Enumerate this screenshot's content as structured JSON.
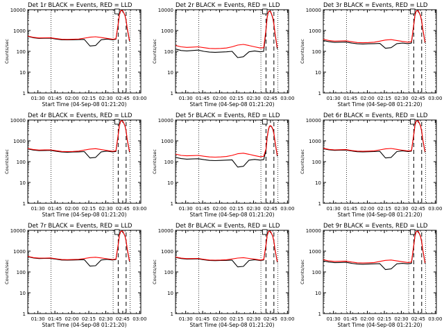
{
  "figure": {
    "xlabel": "Start Time (04-Sep-08 01:21:20)",
    "ylabel": "Counts/sec"
  },
  "axes_common": {
    "x_ticks": [
      "01:30",
      "01:45",
      "02:00",
      "02:15",
      "02:30",
      "02:45",
      "03:00"
    ],
    "x_tick_minutes": [
      90,
      105,
      120,
      135,
      150,
      165,
      180
    ],
    "xlim_minutes": [
      81,
      181
    ],
    "y_scale": "log",
    "ylim": [
      1,
      10000
    ],
    "y_ticks": [
      "1",
      "10",
      "100",
      "1000",
      "10000"
    ],
    "y_tick_values": [
      1,
      10,
      100,
      1000,
      10000
    ],
    "dotted_lines_minutes": [
      101.5,
      156.5,
      171.5
    ],
    "dashed_lines_minutes": [
      161,
      168
    ],
    "small_box_minutes": [
      158,
      162
    ],
    "series_colors": {
      "events": "#000000",
      "lld": "#ff0000"
    }
  },
  "chart_data": [
    {
      "type": "line",
      "title": "Det 1r BLACK = Events, RED = LLD",
      "x": [
        81,
        86,
        91,
        96,
        101,
        106,
        111,
        116,
        121,
        126,
        131,
        136,
        141,
        146,
        151,
        156,
        159,
        161,
        162,
        163,
        164,
        165,
        166,
        167,
        168,
        169,
        170,
        171
      ],
      "series": [
        {
          "name": "Events",
          "color": "#000000",
          "values": [
            520,
            450,
            420,
            425,
            430,
            390,
            360,
            355,
            360,
            365,
            375,
            180,
            190,
            360,
            390,
            360,
            380,
            2000,
            5500,
            8500,
            9200,
            8800,
            7000,
            5200,
            3000,
            1200,
            600,
            300
          ]
        },
        {
          "name": "LLD",
          "color": "#ff0000",
          "values": [
            540,
            470,
            440,
            445,
            450,
            410,
            380,
            375,
            380,
            390,
            430,
            480,
            500,
            460,
            420,
            380,
            400,
            2100,
            5600,
            8600,
            9300,
            8900,
            7100,
            5300,
            3100,
            1300,
            650,
            320
          ]
        }
      ]
    },
    {
      "type": "line",
      "title": "Det 2r BLACK = Events, RED = LLD",
      "x": [
        81,
        86,
        91,
        96,
        101,
        106,
        111,
        116,
        121,
        126,
        131,
        136,
        141,
        146,
        151,
        156,
        159,
        161,
        162,
        163,
        164,
        165,
        166,
        167,
        168,
        169,
        170,
        171
      ],
      "series": [
        {
          "name": "Events",
          "color": "#000000",
          "values": [
            130,
            110,
            105,
            110,
            115,
            100,
            92,
            90,
            92,
            95,
            100,
            50,
            55,
            95,
            105,
            95,
            100,
            1000,
            4000,
            7500,
            8500,
            8000,
            6000,
            4000,
            2000,
            700,
            300,
            130
          ]
        },
        {
          "name": "LLD",
          "color": "#ff0000",
          "values": [
            190,
            165,
            155,
            160,
            165,
            150,
            138,
            135,
            138,
            145,
            165,
            200,
            215,
            190,
            165,
            145,
            150,
            1100,
            4200,
            7700,
            8700,
            8200,
            6200,
            4200,
            2100,
            750,
            330,
            150
          ]
        }
      ]
    },
    {
      "type": "line",
      "title": "Det 3r BLACK = Events, RED = LLD",
      "x": [
        81,
        86,
        91,
        96,
        101,
        106,
        111,
        116,
        121,
        126,
        131,
        136,
        141,
        146,
        151,
        156,
        159,
        161,
        162,
        163,
        164,
        165,
        166,
        167,
        168,
        169,
        170,
        171
      ],
      "series": [
        {
          "name": "Events",
          "color": "#000000",
          "values": [
            330,
            290,
            270,
            275,
            280,
            250,
            230,
            225,
            230,
            235,
            240,
            140,
            150,
            235,
            250,
            235,
            250,
            1800,
            5000,
            8300,
            9000,
            8600,
            6800,
            5000,
            2800,
            1100,
            550,
            250
          ]
        },
        {
          "name": "LLD",
          "color": "#ff0000",
          "values": [
            380,
            330,
            310,
            315,
            320,
            290,
            265,
            260,
            265,
            275,
            310,
            350,
            365,
            330,
            300,
            275,
            290,
            1900,
            5100,
            8400,
            9100,
            8700,
            6900,
            5100,
            2900,
            1150,
            580,
            270
          ]
        }
      ]
    },
    {
      "type": "line",
      "title": "Det 4r BLACK = Events, RED = LLD",
      "x": [
        81,
        86,
        91,
        96,
        101,
        106,
        111,
        116,
        121,
        126,
        131,
        136,
        141,
        146,
        151,
        156,
        159,
        161,
        162,
        163,
        164,
        165,
        166,
        167,
        168,
        169,
        170,
        171
      ],
      "series": [
        {
          "name": "Events",
          "color": "#000000",
          "values": [
            410,
            360,
            340,
            345,
            350,
            315,
            290,
            285,
            290,
            295,
            305,
            150,
            160,
            295,
            320,
            295,
            310,
            1900,
            5200,
            8500,
            9200,
            8800,
            7000,
            5100,
            2900,
            1100,
            560,
            280
          ]
        },
        {
          "name": "LLD",
          "color": "#ff0000",
          "values": [
            430,
            380,
            360,
            365,
            370,
            335,
            310,
            305,
            310,
            320,
            360,
            400,
            420,
            380,
            345,
            315,
            330,
            2000,
            5300,
            8600,
            9300,
            8900,
            7100,
            5200,
            3000,
            1150,
            590,
            300
          ]
        }
      ]
    },
    {
      "type": "line",
      "title": "Det 5r BLACK = Events, RED = LLD",
      "x": [
        81,
        86,
        91,
        96,
        101,
        106,
        111,
        116,
        121,
        126,
        131,
        136,
        141,
        146,
        151,
        156,
        159,
        161,
        162,
        163,
        164,
        165,
        166,
        167,
        168,
        169,
        170,
        171
      ],
      "series": [
        {
          "name": "Events",
          "color": "#000000",
          "values": [
            160,
            140,
            132,
            135,
            138,
            125,
            115,
            112,
            115,
            118,
            122,
            55,
            60,
            118,
            128,
            118,
            125,
            350,
            1300,
            3200,
            4800,
            5200,
            4700,
            3600,
            2200,
            900,
            400,
            180
          ]
        },
        {
          "name": "LLD",
          "color": "#ff0000",
          "values": [
            230,
            200,
            190,
            195,
            200,
            182,
            168,
            165,
            168,
            176,
            200,
            240,
            255,
            225,
            195,
            172,
            180,
            400,
            1400,
            3400,
            5000,
            5400,
            4900,
            3800,
            2300,
            950,
            430,
            200
          ]
        }
      ]
    },
    {
      "type": "line",
      "title": "Det 6r BLACK = Events, RED = LLD",
      "x": [
        81,
        86,
        91,
        96,
        101,
        106,
        111,
        116,
        121,
        126,
        131,
        136,
        141,
        146,
        151,
        156,
        159,
        161,
        162,
        163,
        164,
        165,
        166,
        167,
        168,
        169,
        170,
        171
      ],
      "series": [
        {
          "name": "Events",
          "color": "#000000",
          "values": [
            420,
            370,
            350,
            355,
            360,
            325,
            300,
            295,
            300,
            305,
            315,
            150,
            160,
            305,
            330,
            305,
            320,
            1900,
            5200,
            8500,
            9200,
            8800,
            7000,
            5100,
            2900,
            1100,
            560,
            280
          ]
        },
        {
          "name": "LLD",
          "color": "#ff0000",
          "values": [
            440,
            390,
            370,
            375,
            380,
            345,
            320,
            315,
            320,
            330,
            370,
            410,
            430,
            390,
            355,
            325,
            340,
            2000,
            5300,
            8600,
            9300,
            8900,
            7100,
            5200,
            3000,
            1150,
            590,
            300
          ]
        }
      ]
    },
    {
      "type": "line",
      "title": "Det 7r BLACK = Events, RED = LLD",
      "x": [
        81,
        86,
        91,
        96,
        101,
        106,
        111,
        116,
        121,
        126,
        131,
        136,
        141,
        146,
        151,
        156,
        159,
        161,
        162,
        163,
        164,
        165,
        166,
        167,
        168,
        169,
        170,
        171
      ],
      "series": [
        {
          "name": "Events",
          "color": "#000000",
          "values": [
            540,
            470,
            440,
            445,
            450,
            410,
            375,
            370,
            375,
            380,
            390,
            190,
            200,
            375,
            405,
            375,
            395,
            2000,
            5500,
            8500,
            9200,
            8800,
            7000,
            5200,
            3000,
            1200,
            600,
            310
          ]
        },
        {
          "name": "LLD",
          "color": "#ff0000",
          "values": [
            560,
            490,
            460,
            465,
            470,
            430,
            395,
            390,
            395,
            405,
            440,
            490,
            510,
            470,
            430,
            395,
            415,
            2100,
            5600,
            8600,
            9300,
            8900,
            7100,
            5300,
            3100,
            1300,
            650,
            330
          ]
        }
      ]
    },
    {
      "type": "line",
      "title": "Det 8r BLACK = Events, RED = LLD",
      "x": [
        81,
        86,
        91,
        96,
        101,
        106,
        111,
        116,
        121,
        126,
        131,
        136,
        141,
        146,
        151,
        156,
        159,
        161,
        162,
        163,
        164,
        165,
        166,
        167,
        168,
        169,
        170,
        171
      ],
      "series": [
        {
          "name": "Events",
          "color": "#000000",
          "values": [
            500,
            440,
            415,
            420,
            425,
            385,
            355,
            350,
            355,
            360,
            370,
            175,
            185,
            355,
            385,
            355,
            375,
            1900,
            5300,
            8400,
            9100,
            8700,
            6900,
            5100,
            2900,
            1150,
            580,
            290
          ]
        },
        {
          "name": "LLD",
          "color": "#ff0000",
          "values": [
            520,
            460,
            435,
            440,
            445,
            405,
            375,
            370,
            375,
            385,
            420,
            465,
            485,
            445,
            410,
            375,
            395,
            2000,
            5400,
            8500,
            9200,
            8800,
            7000,
            5200,
            3000,
            1200,
            610,
            310
          ]
        }
      ]
    },
    {
      "type": "line",
      "title": "Det 9r BLACK = Events, RED = LLD",
      "x": [
        81,
        86,
        91,
        96,
        101,
        106,
        111,
        116,
        121,
        126,
        131,
        136,
        141,
        146,
        151,
        156,
        159,
        161,
        162,
        163,
        164,
        165,
        166,
        167,
        168,
        169,
        170,
        171
      ],
      "series": [
        {
          "name": "Events",
          "color": "#000000",
          "values": [
            340,
            300,
            280,
            285,
            290,
            260,
            240,
            235,
            240,
            245,
            250,
            130,
            140,
            245,
            260,
            245,
            260,
            1800,
            5000,
            8300,
            9000,
            8600,
            6800,
            5000,
            2800,
            1100,
            550,
            250
          ]
        },
        {
          "name": "LLD",
          "color": "#ff0000",
          "values": [
            390,
            340,
            320,
            325,
            330,
            300,
            275,
            270,
            275,
            285,
            320,
            360,
            375,
            340,
            310,
            285,
            300,
            1900,
            5100,
            8400,
            9100,
            8700,
            6900,
            5100,
            2900,
            1150,
            580,
            270
          ]
        }
      ]
    }
  ]
}
